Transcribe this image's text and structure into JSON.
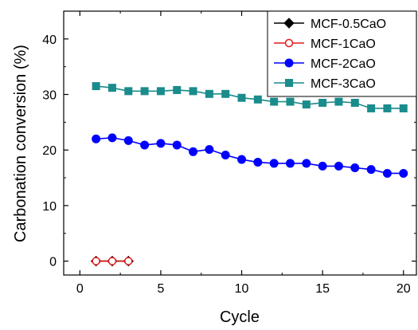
{
  "chart_data": {
    "type": "line",
    "xlabel": "Cycle",
    "ylabel": "Carbonation conversion (%)",
    "xlim": [
      -1,
      20.8
    ],
    "ylim": [
      -2.5,
      45
    ],
    "xticks": [
      0,
      5,
      10,
      15,
      20
    ],
    "yticks": [
      0,
      10,
      20,
      30,
      40
    ],
    "grid": false,
    "legend_position": "top-right",
    "series": [
      {
        "name": "MCF-0.5CaO",
        "color": "#000000",
        "marker": "diamond-filled",
        "x": [
          1,
          2,
          3
        ],
        "y": [
          0,
          0,
          0
        ]
      },
      {
        "name": "MCF-1CaO",
        "color": "#e41a1c",
        "marker": "circle-open",
        "x": [
          1,
          2,
          3
        ],
        "y": [
          0,
          0,
          0
        ]
      },
      {
        "name": "MCF-2CaO",
        "color": "#0000ff",
        "marker": "circle-filled",
        "x": [
          1,
          2,
          3,
          4,
          5,
          6,
          7,
          8,
          9,
          10,
          11,
          12,
          13,
          14,
          15,
          16,
          17,
          18,
          19,
          20
        ],
        "y": [
          22.0,
          22.2,
          21.7,
          20.9,
          21.2,
          20.9,
          19.7,
          20.1,
          19.1,
          18.3,
          17.8,
          17.6,
          17.6,
          17.6,
          17.1,
          17.1,
          16.8,
          16.5,
          15.8,
          15.8
        ]
      },
      {
        "name": "MCF-3CaO",
        "color": "#1a8c8c",
        "marker": "square-filled",
        "x": [
          1,
          2,
          3,
          4,
          5,
          6,
          7,
          8,
          9,
          10,
          11,
          12,
          13,
          14,
          15,
          16,
          17,
          18,
          19,
          20
        ],
        "y": [
          31.5,
          31.2,
          30.6,
          30.6,
          30.6,
          30.8,
          30.6,
          30.1,
          30.1,
          29.4,
          29.1,
          28.7,
          28.7,
          28.2,
          28.5,
          28.7,
          28.5,
          27.5,
          27.5,
          27.5
        ]
      }
    ]
  }
}
